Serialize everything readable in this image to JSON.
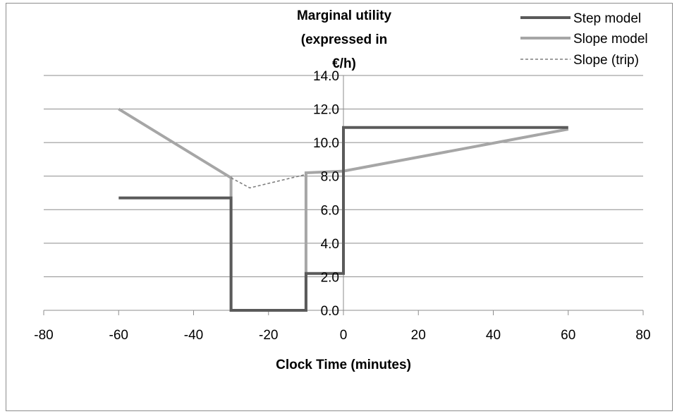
{
  "chart_data": {
    "type": "line",
    "ylabel_lines": [
      "Marginal utility",
      "(expressed in",
      "€/h)"
    ],
    "xlabel": "Clock Time (minutes)",
    "xlim": [
      -80,
      80
    ],
    "ylim": [
      0,
      14
    ],
    "x_ticks": [
      -80,
      -60,
      -40,
      -20,
      0,
      20,
      40,
      60,
      80
    ],
    "y_ticks": [
      "0.0",
      "2.0",
      "4.0",
      "6.0",
      "8.0",
      "10.0",
      "12.0",
      "14.0"
    ],
    "grid": "horizontal",
    "legend_position": "top-right",
    "series": [
      {
        "name": "Step model",
        "color": "#5a5a5a",
        "style": "solid",
        "points": [
          [
            -60,
            6.7
          ],
          [
            -30,
            6.7
          ],
          [
            -30,
            0
          ],
          [
            -10,
            0
          ],
          [
            -10,
            2.2
          ],
          [
            0,
            2.2
          ],
          [
            0,
            10.9
          ],
          [
            60,
            10.9
          ]
        ]
      },
      {
        "name": "Slope model",
        "color": "#a6a6a6",
        "style": "solid",
        "points": [
          [
            -60,
            12
          ],
          [
            -30,
            7.9
          ],
          [
            -30,
            0
          ],
          [
            -10,
            0
          ],
          [
            -10,
            8.2
          ],
          [
            0,
            8.3
          ],
          [
            60,
            10.8
          ]
        ]
      },
      {
        "name": "Slope (trip)",
        "color": "#7f7f7f",
        "style": "dashed",
        "points": [
          [
            -30,
            7.9
          ],
          [
            -25,
            7.3
          ],
          [
            -10,
            8.1
          ]
        ]
      }
    ]
  }
}
